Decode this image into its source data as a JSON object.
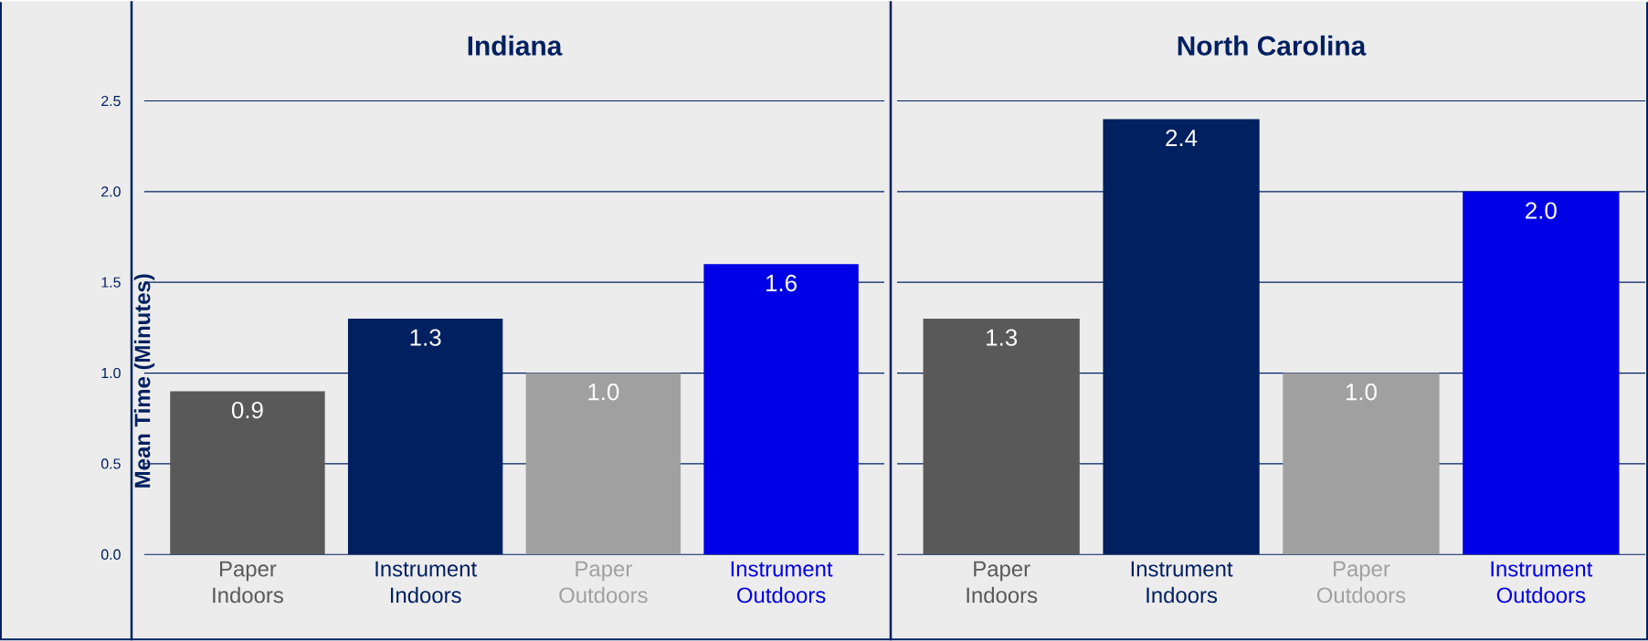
{
  "chart_data": [
    {
      "type": "bar",
      "title": "Indiana",
      "ylabel": "Mean Time (Minutes)",
      "categories": [
        "Paper Indoors",
        "Instrument Indoors",
        "Paper Outdoors",
        "Instrument Outdoors"
      ],
      "values": [
        0.9,
        1.3,
        1.0,
        1.6
      ],
      "value_labels": [
        "0.9",
        "1.3",
        "1.0",
        "1.6"
      ],
      "colors": [
        "#595959",
        "#002060",
        "#a0a0a0",
        "#0000e6"
      ],
      "ylim": [
        0,
        3.05
      ],
      "yticks": [
        {
          "value": 0,
          "label": "0.0"
        },
        {
          "value": 0.5,
          "label": "0.5"
        },
        {
          "value": 1,
          "label": "1.0"
        },
        {
          "value": 1.5,
          "label": "1.5"
        },
        {
          "value": 2,
          "label": "2.0"
        },
        {
          "value": 2.5,
          "label": "2.5"
        }
      ],
      "grid": "y"
    },
    {
      "type": "bar",
      "title": "North Carolina",
      "categories": [
        "Paper Indoors",
        "Instrument Indoors",
        "Paper Outdoors",
        "Instrument Outdoors"
      ],
      "values": [
        1.3,
        2.4,
        1.0,
        2.0
      ],
      "value_labels": [
        "1.3",
        "2.4",
        "1.0",
        "2.0"
      ],
      "colors": [
        "#595959",
        "#002060",
        "#a0a0a0",
        "#0000e6"
      ],
      "ylim": [
        0,
        3.05
      ],
      "yticks": [
        0,
        0.5,
        1,
        1.5,
        2,
        2.5
      ],
      "grid": "y",
      "tick_labels": "x"
    }
  ]
}
